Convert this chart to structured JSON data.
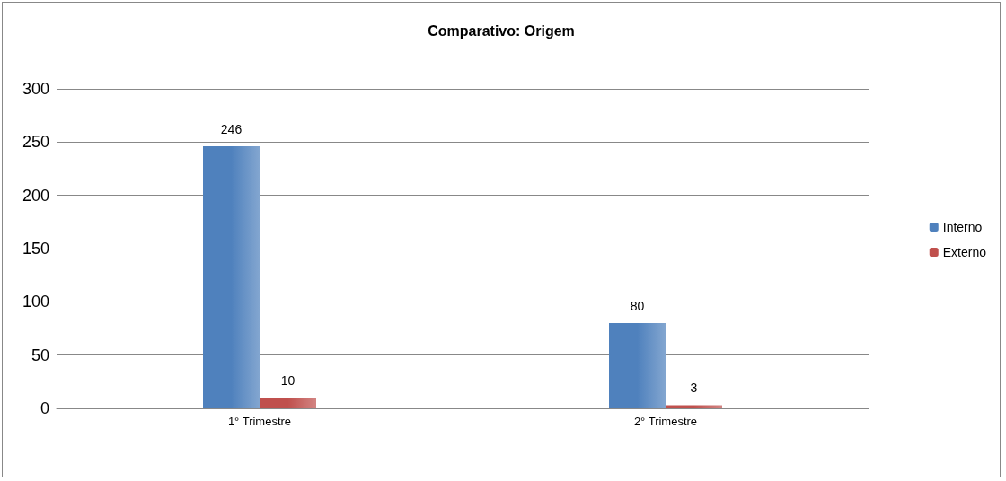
{
  "chart_data": {
    "type": "bar",
    "title": "Comparativo: Origem",
    "categories": [
      "1° Trimestre",
      "2° Trimestre"
    ],
    "series": [
      {
        "name": "Interno",
        "color": "#4f81bd",
        "values": [
          246,
          80
        ]
      },
      {
        "name": "Externo",
        "color": "#c0504d",
        "values": [
          10,
          3
        ]
      }
    ],
    "ylim": [
      0,
      300
    ],
    "yticks": [
      0,
      50,
      100,
      150,
      200,
      250,
      300
    ],
    "grid": "y",
    "legend": "right",
    "data_labels": true
  }
}
